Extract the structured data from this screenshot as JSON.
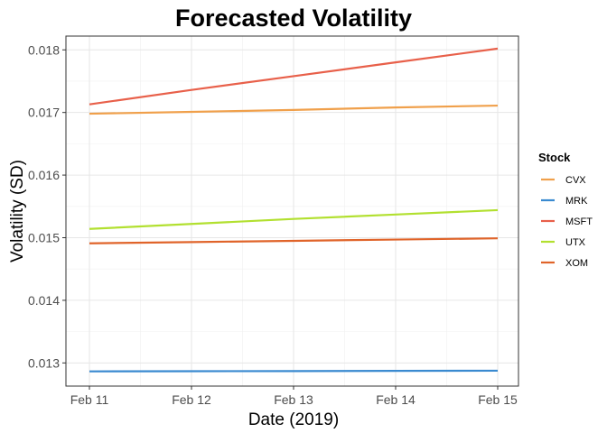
{
  "chart_data": {
    "type": "line",
    "title": "Forecasted Volatility",
    "xlabel": "Date (2019)",
    "ylabel": "Volatility (SD)",
    "x": [
      "Feb 11",
      "Feb 12",
      "Feb 13",
      "Feb 14",
      "Feb 15"
    ],
    "x_ticks": [
      "Feb 11",
      "Feb 12",
      "Feb 13",
      "Feb 14",
      "Feb 15"
    ],
    "ylim": [
      0.01263,
      0.01822
    ],
    "y_ticks": [
      0.013,
      0.014,
      0.015,
      0.016,
      0.017,
      0.018
    ],
    "y_tick_labels": [
      "0.013",
      "0.014",
      "0.015",
      "0.016",
      "0.017",
      "0.018"
    ],
    "grid": true,
    "legend": {
      "title": "Stock",
      "placement": "right"
    },
    "series": [
      {
        "name": "CVX",
        "color": "#F0A04B",
        "values": [
          0.01698,
          0.01701,
          0.01704,
          0.01708,
          0.01711
        ]
      },
      {
        "name": "MRK",
        "color": "#3A8AD0",
        "values": [
          0.012865,
          0.012868,
          0.01287,
          0.012873,
          0.012876
        ]
      },
      {
        "name": "MSFT",
        "color": "#E8604A",
        "values": [
          0.01713,
          0.01736,
          0.01758,
          0.0178,
          0.01802
        ]
      },
      {
        "name": "UTX",
        "color": "#B2E030",
        "values": [
          0.01514,
          0.01522,
          0.0153,
          0.01537,
          0.01544
        ]
      },
      {
        "name": "XOM",
        "color": "#E0642A",
        "values": [
          0.01491,
          0.01493,
          0.01495,
          0.01497,
          0.01499
        ]
      }
    ]
  }
}
